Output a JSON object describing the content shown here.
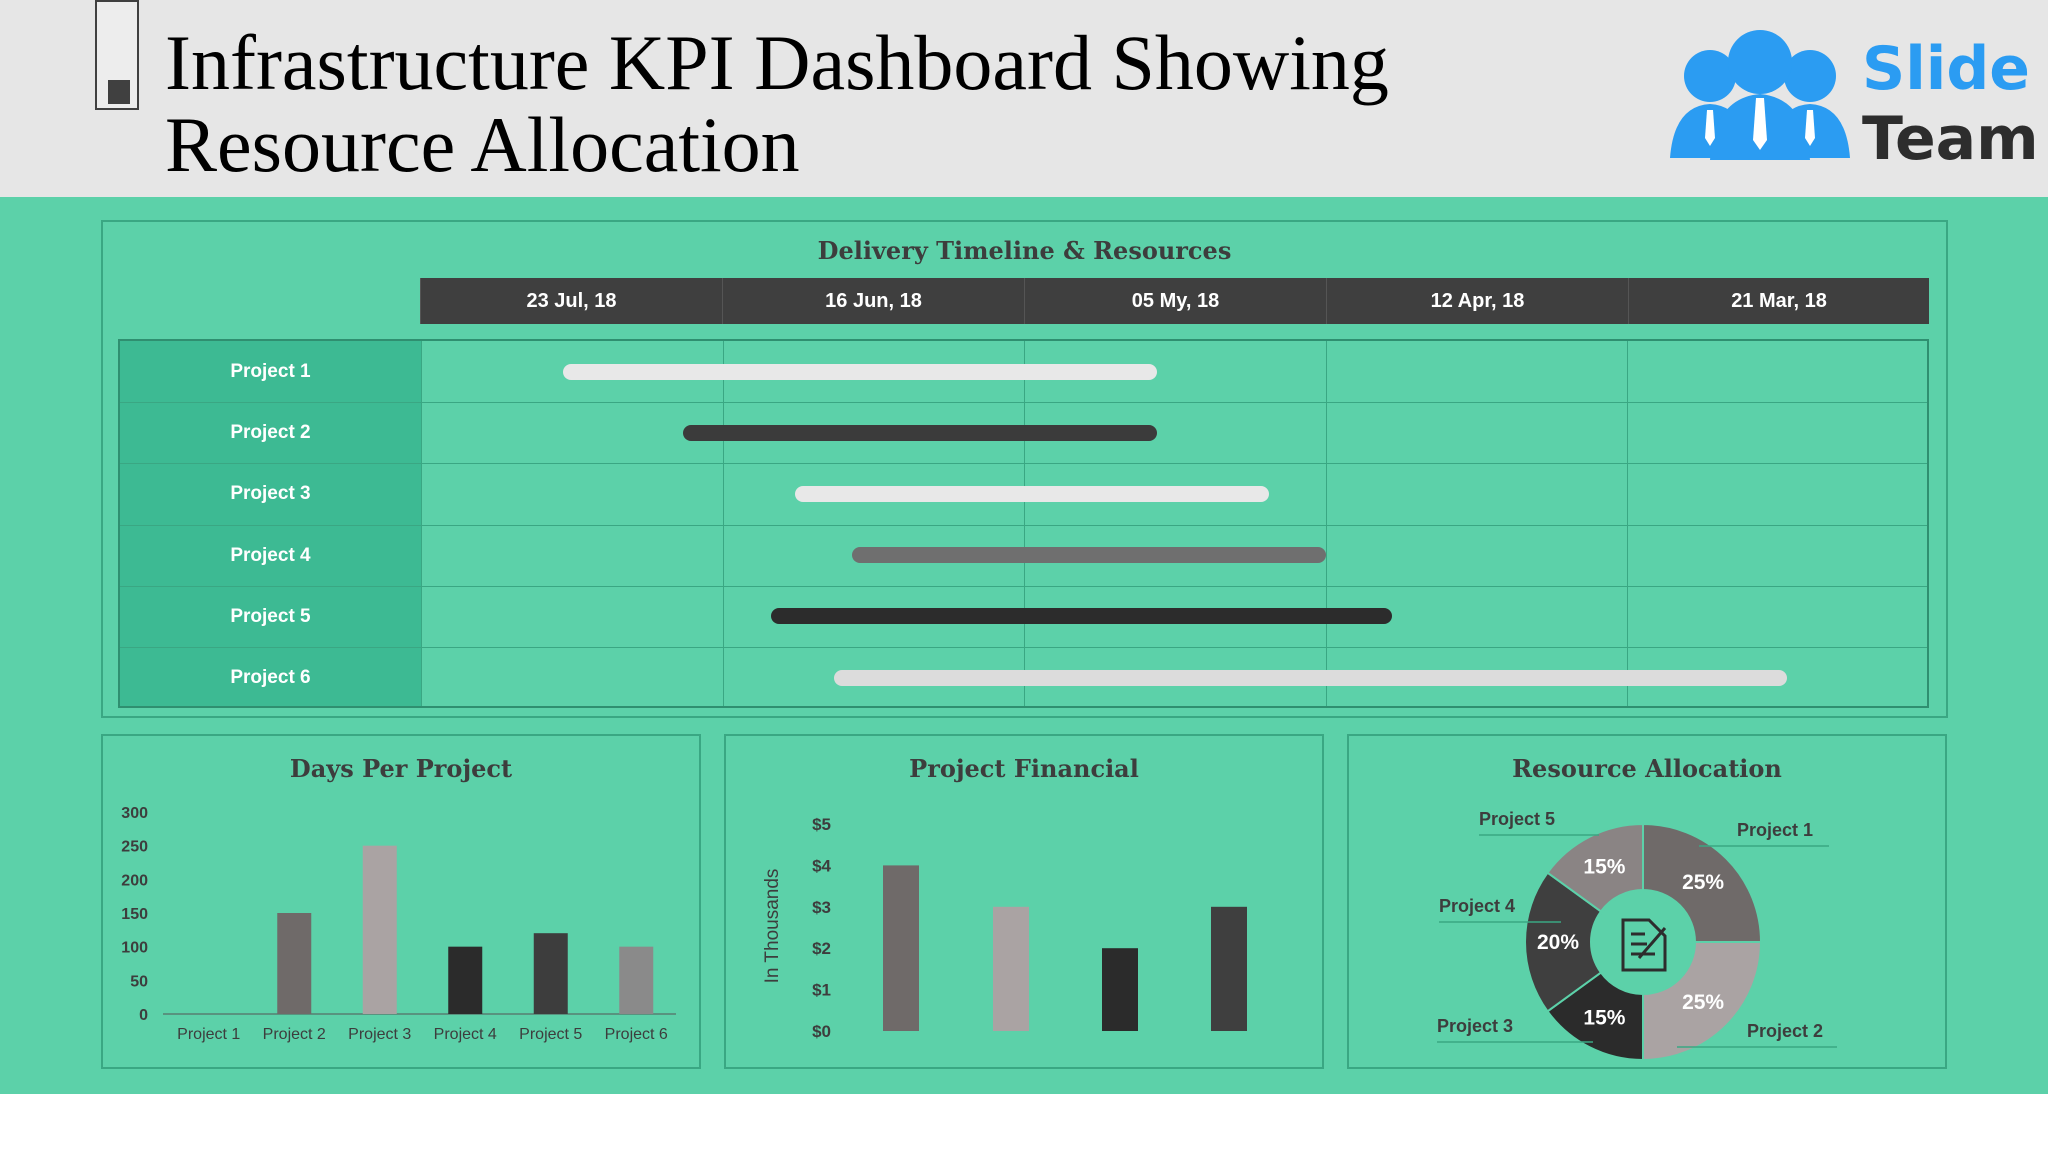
{
  "header": {
    "title_line1": "Infrastructure KPI Dashboard Showing",
    "title_line2": "Resource Allocation",
    "logo_word1": "Slide",
    "logo_word2": "Team"
  },
  "colors": {
    "header_bg": "#e6e6e6",
    "content_bg": "#5cd1a9",
    "label_column": "#3dba93",
    "timeline_header": "#3f3f3f",
    "logo_blue": "#2b9cf2",
    "text_dark": "#3d3d3d"
  },
  "gantt": {
    "title": "Delivery Timeline & Resources",
    "dates": [
      "23 Jul, 18",
      "16 Jun, 18",
      "05 My, 18",
      "12 Apr, 18",
      "21 Mar, 18"
    ],
    "rows": [
      {
        "label": "Project 1",
        "start": 0.47,
        "end": 2.44,
        "color": "#e8e8e8"
      },
      {
        "label": "Project 2",
        "start": 0.87,
        "end": 2.44,
        "color": "#3b3b3b"
      },
      {
        "label": "Project 3",
        "start": 1.24,
        "end": 2.81,
        "color": "#e8e8e8"
      },
      {
        "label": "Project 4",
        "start": 1.43,
        "end": 3.0,
        "color": "#6f6f6f"
      },
      {
        "label": "Project 5",
        "start": 1.16,
        "end": 3.22,
        "color": "#2c2c2c"
      },
      {
        "label": "Project 6",
        "start": 1.37,
        "end": 4.53,
        "color": "#dcdcdc"
      }
    ]
  },
  "chart_data": [
    {
      "type": "bar",
      "title": "Days Per Project",
      "categories": [
        "Project 1",
        "Project 2",
        "Project 3",
        "Project 4",
        "Project 5",
        "Project 6"
      ],
      "values": [
        0,
        150,
        250,
        100,
        120,
        100
      ],
      "colors": [
        "#6b6b6b",
        "#6f6a69",
        "#aaa3a3",
        "#2b2b2b",
        "#3d3d3d",
        "#8a8a8a"
      ],
      "yticks": [
        "0",
        "50",
        "100",
        "150",
        "200",
        "250",
        "300"
      ],
      "ylim": [
        0,
        300
      ]
    },
    {
      "type": "bar",
      "title": "Project Financial",
      "ylabel": "In Thousands",
      "values": [
        4,
        3,
        2,
        3
      ],
      "colors": [
        "#6f6a69",
        "#aaa3a3",
        "#2b2b2b",
        "#3f3f3f"
      ],
      "yticks": [
        "$0",
        "$1",
        "$2",
        "$3",
        "$4",
        "$5"
      ],
      "ylim": [
        0,
        5
      ]
    },
    {
      "type": "pie",
      "title": "Resource Allocation",
      "slices": [
        {
          "label": "Project 1",
          "value": 25,
          "pct": "25%",
          "color": "#6f6a69"
        },
        {
          "label": "Project 2",
          "value": 25,
          "pct": "25%",
          "color": "#aaa3a3"
        },
        {
          "label": "Project 3",
          "value": 15,
          "pct": "15%",
          "color": "#2b2b2b"
        },
        {
          "label": "Project 4",
          "value": 20,
          "pct": "20%",
          "color": "#3f3f3f"
        },
        {
          "label": "Project 5",
          "value": 15,
          "pct": "15%",
          "color": "#8a8484"
        }
      ],
      "center_icon": "document-edit-icon"
    }
  ]
}
